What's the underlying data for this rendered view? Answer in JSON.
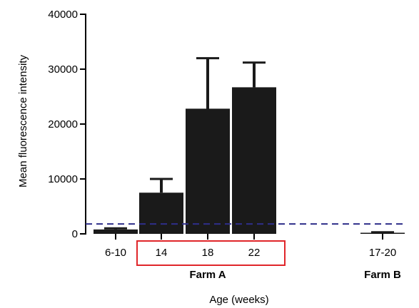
{
  "chart_data": {
    "type": "bar",
    "categories": [
      "6-10",
      "14",
      "18",
      "22",
      "17-20"
    ],
    "groups": [
      {
        "label": "Farm A",
        "categories": [
          "14",
          "18",
          "22"
        ],
        "highlighted": true
      },
      {
        "label": "Farm B",
        "categories": [
          "17-20"
        ],
        "highlighted": false
      }
    ],
    "values": [
      800,
      7500,
      22800,
      26700,
      200
    ],
    "error_upper": [
      1000,
      10000,
      32000,
      31200,
      300
    ],
    "xlabel": "Age (weeks)",
    "ylabel": "Mean fluorescence intensity",
    "ylim": [
      0,
      40000
    ],
    "yticks": [
      0,
      10000,
      20000,
      30000,
      40000
    ],
    "ytick_labels": [
      "0",
      "10000",
      "20000",
      "30000",
      "40000"
    ],
    "threshold": {
      "value": 1800,
      "style": "dashed",
      "color": "#2e2e8a"
    },
    "bar_color": "#1a1a1a",
    "highlight_color": "#e0262a",
    "grid": false
  }
}
